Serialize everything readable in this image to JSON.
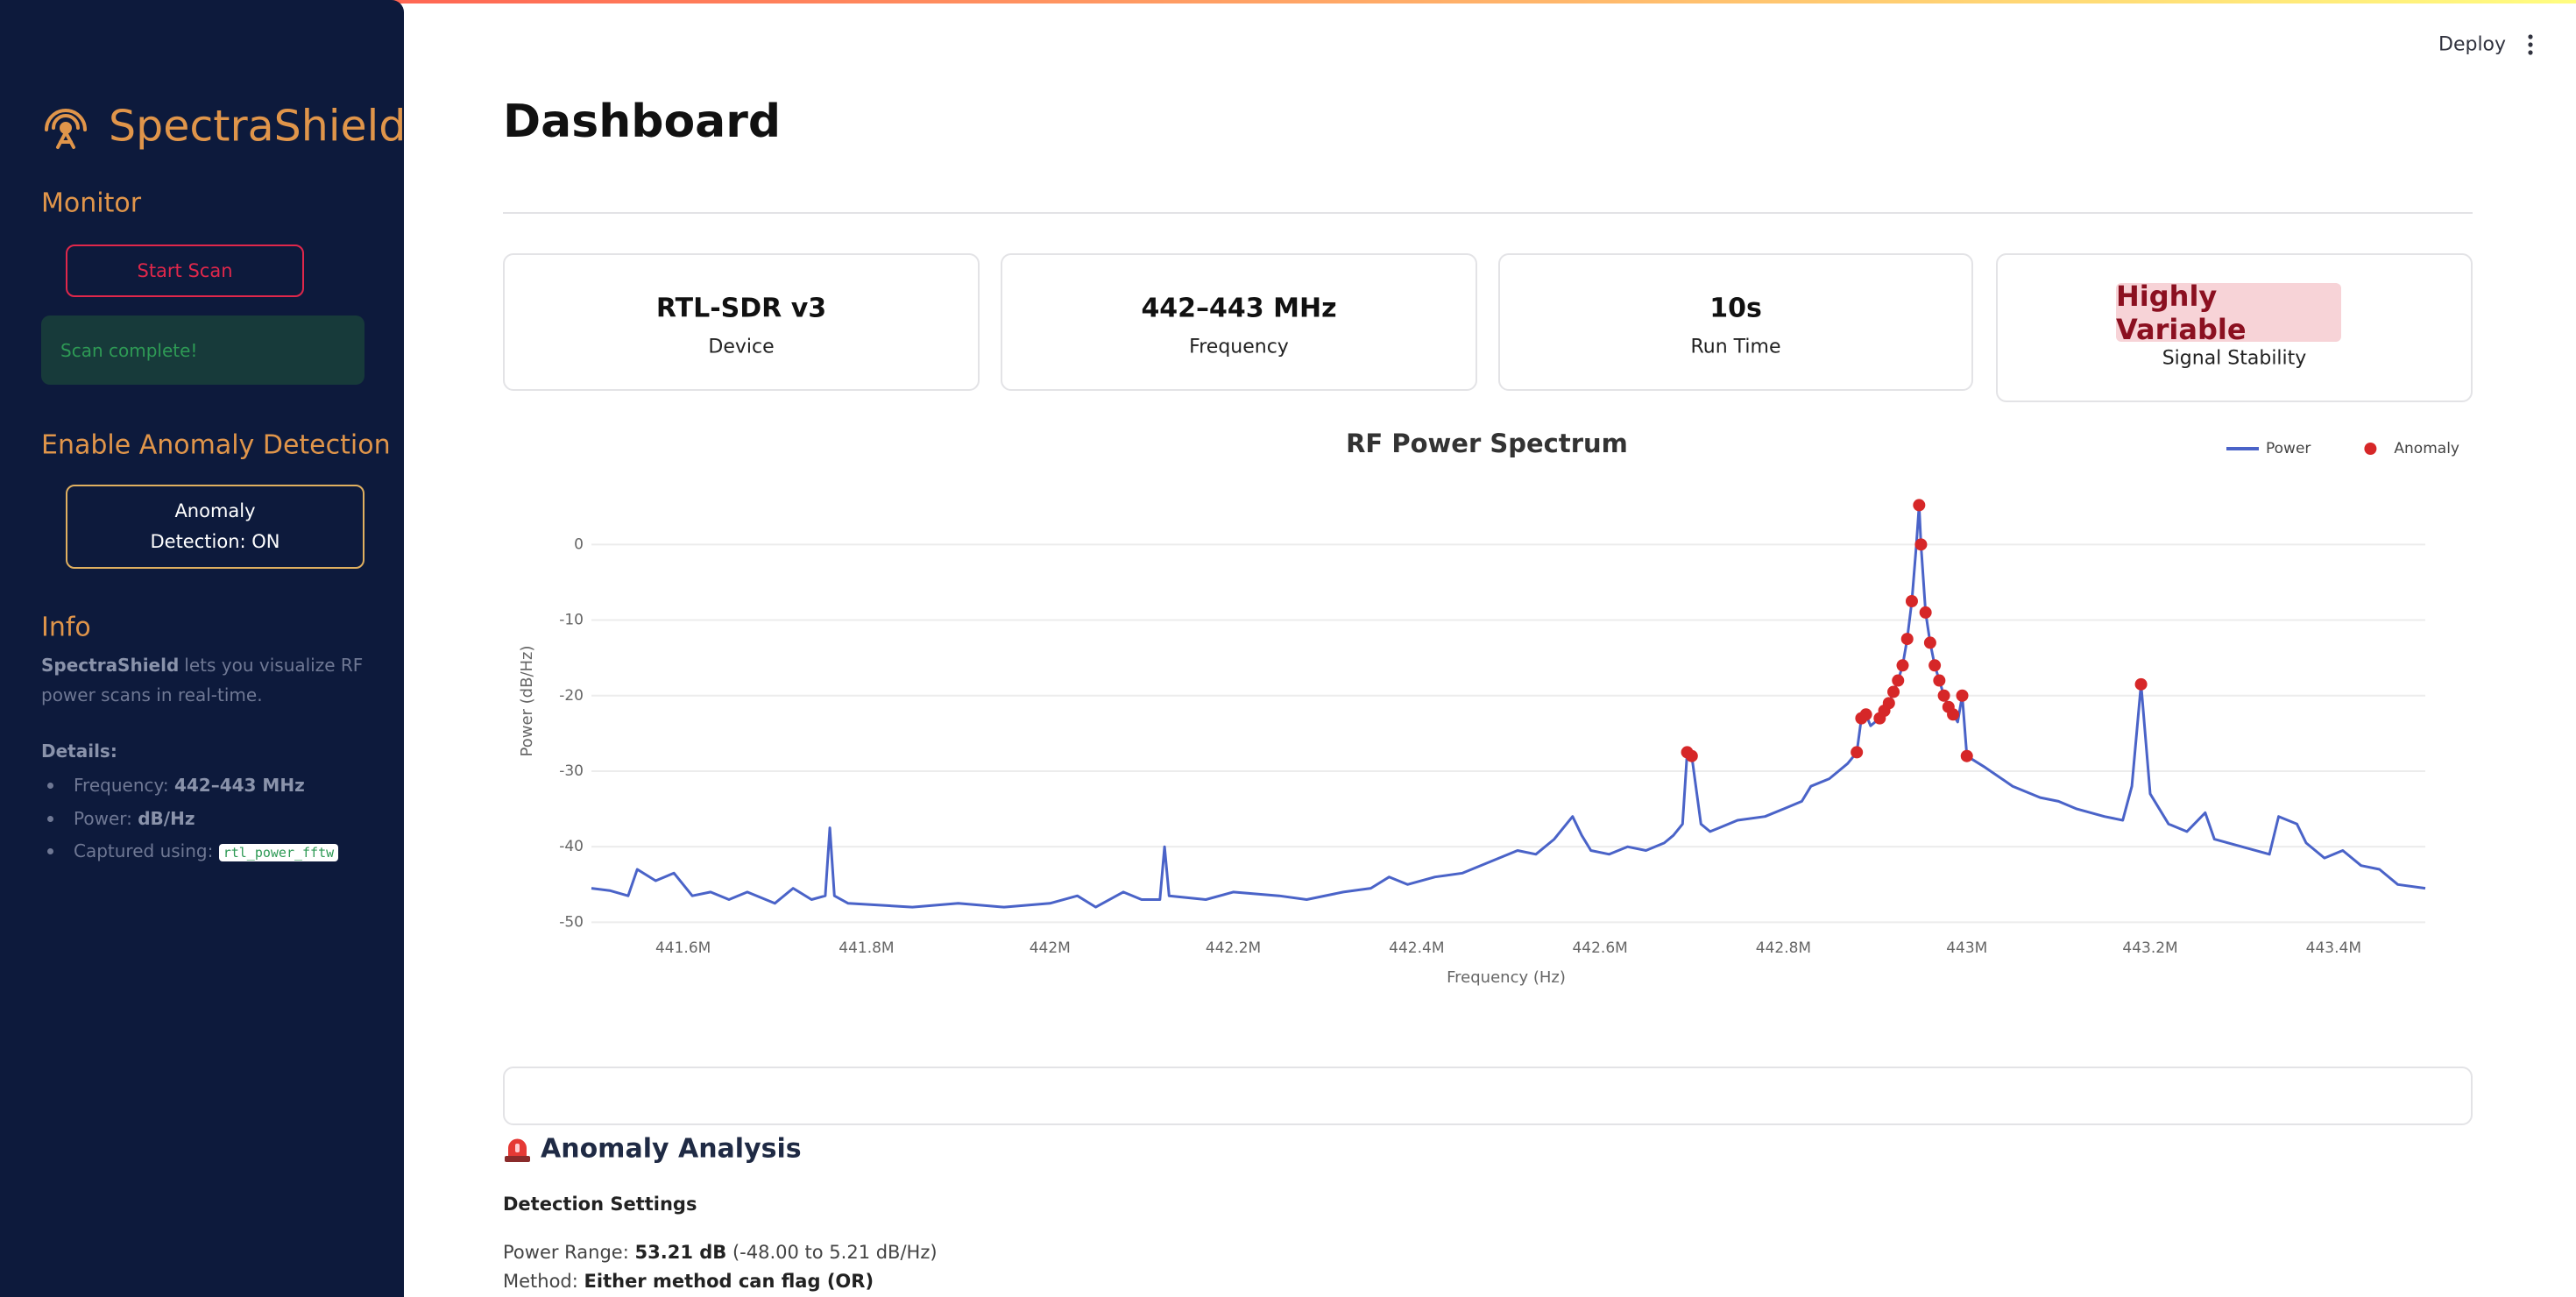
{
  "sidebar": {
    "brand": "SpectraShield",
    "monitor_heading": "Monitor",
    "scan_button": "Start Scan",
    "status": "Scan complete!",
    "anomaly_heading": "Enable Anomaly Detection",
    "anomaly_toggle": "Anomaly Detection: ON",
    "info_heading": "Info",
    "info_brand": "SpectraShield",
    "info_text": "lets you visualize RF power scans in real-time.",
    "details_label": "Details:",
    "details": [
      {
        "label": "Frequency:",
        "value": "442–443 MHz"
      },
      {
        "label": "Power:",
        "value": "dB/Hz"
      },
      {
        "label": "Captured using:",
        "value": "rtl_power_fftw"
      }
    ]
  },
  "header": {
    "deploy": "Deploy",
    "title": "Dashboard"
  },
  "metrics": [
    {
      "value": "RTL-SDR v3",
      "label": "Device"
    },
    {
      "value": "442–443 MHz",
      "label": "Frequency"
    },
    {
      "value": "10s",
      "label": "Run Time"
    },
    {
      "value": "Highly Variable",
      "label": "Signal Stability"
    }
  ],
  "chart_data": {
    "type": "line",
    "title": "RF Power Spectrum",
    "x_label": "Frequency (Hz)",
    "y_label": "Power (dB/Hz)",
    "xlim": [
      441500000.0,
      443500000.0
    ],
    "ylim": [
      -51,
      7
    ],
    "xticks": [
      {
        "value": 441600000.0,
        "label": "441.6M"
      },
      {
        "value": 441800000.0,
        "label": "441.8M"
      },
      {
        "value": 442000000.0,
        "label": "442M"
      },
      {
        "value": 442200000.0,
        "label": "442.2M"
      },
      {
        "value": 442400000.0,
        "label": "442.4M"
      },
      {
        "value": 442600000.0,
        "label": "442.6M"
      },
      {
        "value": 442800000.0,
        "label": "442.8M"
      },
      {
        "value": 443000000.0,
        "label": "443M"
      },
      {
        "value": 443200000.0,
        "label": "443.2M"
      },
      {
        "value": 443400000.0,
        "label": "443.4M"
      }
    ],
    "yticks": [
      -50,
      -40,
      -30,
      -20,
      -10,
      0
    ],
    "grid": true,
    "legend": "top-right",
    "series": [
      {
        "name": "Power",
        "type": "line",
        "color": "#4a63c8",
        "x": [
          441500000.0,
          441520000.0,
          441540000.0,
          441550000.0,
          441570000.0,
          441590000.0,
          441610000.0,
          441630000.0,
          441650000.0,
          441670000.0,
          441700000.0,
          441720000.0,
          441740000.0,
          441755000.0,
          441760000.0,
          441765000.0,
          441780000.0,
          441850000.0,
          441900000.0,
          441950000.0,
          442000000.0,
          442030000.0,
          442050000.0,
          442080000.0,
          442100000.0,
          442120000.0,
          442125000.0,
          442130000.0,
          442170000.0,
          442200000.0,
          442250000.0,
          442280000.0,
          442320000.0,
          442350000.0,
          442370000.0,
          442390000.0,
          442420000.0,
          442450000.0,
          442480000.0,
          442510000.0,
          442530000.0,
          442550000.0,
          442570000.0,
          442580000.0,
          442590000.0,
          442610000.0,
          442630000.0,
          442650000.0,
          442670000.0,
          442680000.0,
          442690000.0,
          442695000.0,
          442700000.0,
          442710000.0,
          442720000.0,
          442730000.0,
          442750000.0,
          442780000.0,
          442800000.0,
          442820000.0,
          442830000.0,
          442850000.0,
          442870000.0,
          442880000.0,
          442885000.0,
          442890000.0,
          442895000.0,
          442905000.0,
          442910000.0,
          442915000.0,
          442920000.0,
          442925000.0,
          442930000.0,
          442935000.0,
          442940000.0,
          442945000.0,
          442948000.0,
          442950000.0,
          442955000.0,
          442960000.0,
          442965000.0,
          442970000.0,
          442975000.0,
          442980000.0,
          442985000.0,
          442990000.0,
          442995000.0,
          443000000.0,
          443020000.0,
          443050000.0,
          443080000.0,
          443100000.0,
          443120000.0,
          443150000.0,
          443170000.0,
          443180000.0,
          443190000.0,
          443200000.0,
          443220000.0,
          443240000.0,
          443260000.0,
          443270000.0,
          443300000.0,
          443330000.0,
          443340000.0,
          443360000.0,
          443370000.0,
          443390000.0,
          443410000.0,
          443430000.0,
          443450000.0,
          443470000.0,
          443500000.0
        ],
        "values": [
          -45.5,
          -45.8,
          -46.5,
          -43,
          -44.5,
          -43.5,
          -46.5,
          -46,
          -47,
          -46,
          -47.5,
          -45.5,
          -47,
          -46.5,
          -37.5,
          -46.5,
          -47.5,
          -48,
          -47.5,
          -48,
          -47.5,
          -46.5,
          -48,
          -46,
          -47,
          -47,
          -40,
          -46.5,
          -47,
          -46,
          -46.5,
          -47,
          -46,
          -45.5,
          -44,
          -45,
          -44,
          -43.5,
          -42,
          -40.5,
          -41,
          -39,
          -36,
          -38.5,
          -40.5,
          -41,
          -40,
          -40.5,
          -39.5,
          -38.5,
          -37,
          -27.5,
          -28,
          -37,
          -38,
          -37.5,
          -36.5,
          -36,
          -35,
          -34,
          -32,
          -31,
          -29,
          -27.5,
          -23,
          -22.5,
          -24,
          -23,
          -22,
          -21,
          -19.5,
          -18,
          -16,
          -12.5,
          -7.5,
          0,
          5.21,
          0,
          -9,
          -13,
          -16,
          -18,
          -20,
          -21.5,
          -22.5,
          -23.5,
          -20,
          -28,
          -29.5,
          -32,
          -33.5,
          -34,
          -35,
          -36,
          -36.5,
          -32,
          -18.5,
          -33,
          -37,
          -38,
          -35.5,
          -39,
          -40,
          -41,
          -36,
          -37,
          -39.5,
          -41.5,
          -40.5,
          -42.5,
          -43,
          -45,
          -45.5
        ]
      },
      {
        "name": "Anomaly",
        "type": "scatter",
        "color": "#d62728",
        "x": [
          442695000.0,
          442700000.0,
          442880000.0,
          442885000.0,
          442890000.0,
          442905000.0,
          442910000.0,
          442915000.0,
          442920000.0,
          442925000.0,
          442930000.0,
          442935000.0,
          442940000.0,
          442948000.0,
          442950000.0,
          442955000.0,
          442960000.0,
          442965000.0,
          442970000.0,
          442975000.0,
          442980000.0,
          442985000.0,
          442995000.0,
          443000000.0,
          443190000.0
        ],
        "values": [
          -27.5,
          -28,
          -27.5,
          -23,
          -22.5,
          -23,
          -22,
          -21,
          -19.5,
          -18,
          -16,
          -12.5,
          -7.5,
          5.21,
          0,
          -9,
          -13,
          -16,
          -18,
          -20,
          -21.5,
          -22.5,
          -20,
          -28,
          -18.5
        ]
      }
    ]
  },
  "anomaly": {
    "heading": "Anomaly Analysis",
    "settings_heading": "Detection Settings",
    "range_label": "Power Range:",
    "range_value": "53.21 dB",
    "range_detail": "(-48.00 to 5.21 dB/Hz)",
    "method_label": "Method:",
    "method_value": "Either method can flag (OR)"
  }
}
